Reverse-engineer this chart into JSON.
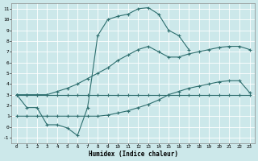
{
  "xlabel": "Humidex (Indice chaleur)",
  "bg_color": "#cce8ea",
  "line_color": "#2d6e6e",
  "grid_color": "#b8d8da",
  "xlim": [
    -0.5,
    23.5
  ],
  "ylim": [
    -1.5,
    11.5
  ],
  "xticks": [
    0,
    1,
    2,
    3,
    4,
    5,
    6,
    7,
    8,
    9,
    10,
    11,
    12,
    13,
    14,
    15,
    16,
    17,
    18,
    19,
    20,
    21,
    22,
    23
  ],
  "yticks": [
    -1,
    0,
    1,
    2,
    3,
    4,
    5,
    6,
    7,
    8,
    9,
    10,
    11
  ],
  "curve1_x": [
    0,
    1,
    2,
    3,
    4,
    5,
    6,
    7,
    8,
    9,
    10,
    11,
    12,
    13,
    14,
    15,
    16,
    17
  ],
  "curve1_y": [
    3.0,
    1.8,
    1.8,
    0.2,
    0.2,
    -0.1,
    -0.8,
    1.8,
    8.5,
    10.0,
    10.3,
    10.5,
    11.0,
    11.1,
    10.5,
    9.0,
    8.5,
    7.2
  ],
  "curve2_x": [
    0,
    1,
    2,
    3,
    4,
    5,
    6,
    7,
    8,
    9,
    10,
    11,
    12,
    13,
    14,
    15,
    16,
    17,
    18,
    19,
    20,
    21,
    22,
    23
  ],
  "curve2_y": [
    3.0,
    3.0,
    3.0,
    3.0,
    3.3,
    3.6,
    4.0,
    4.5,
    5.0,
    5.5,
    6.2,
    6.7,
    7.2,
    7.5,
    7.0,
    6.5,
    6.5,
    6.8,
    7.0,
    7.2,
    7.4,
    7.5,
    7.5,
    7.2
  ],
  "curve3_x": [
    0,
    1,
    2,
    3,
    4,
    5,
    6,
    7,
    8,
    9,
    10,
    11,
    12,
    13,
    14,
    15,
    16,
    17,
    18,
    19,
    20,
    21,
    22,
    23
  ],
  "curve3_y": [
    1.0,
    1.0,
    1.0,
    1.0,
    1.0,
    1.0,
    1.0,
    1.0,
    1.0,
    1.1,
    1.3,
    1.5,
    1.8,
    2.1,
    2.5,
    3.0,
    3.3,
    3.6,
    3.8,
    4.0,
    4.2,
    4.3,
    4.3,
    3.2
  ],
  "curve4_x": [
    0,
    1,
    2,
    3,
    4,
    5,
    6,
    7,
    8,
    9,
    10,
    11,
    12,
    13,
    14,
    15,
    16,
    17,
    18,
    19,
    20,
    21,
    22,
    23
  ],
  "curve4_y": [
    3.0,
    3.0,
    3.0,
    3.0,
    3.0,
    3.0,
    3.0,
    3.0,
    3.0,
    3.0,
    3.0,
    3.0,
    3.0,
    3.0,
    3.0,
    3.0,
    3.0,
    3.0,
    3.0,
    3.0,
    3.0,
    3.0,
    3.0,
    3.0
  ]
}
